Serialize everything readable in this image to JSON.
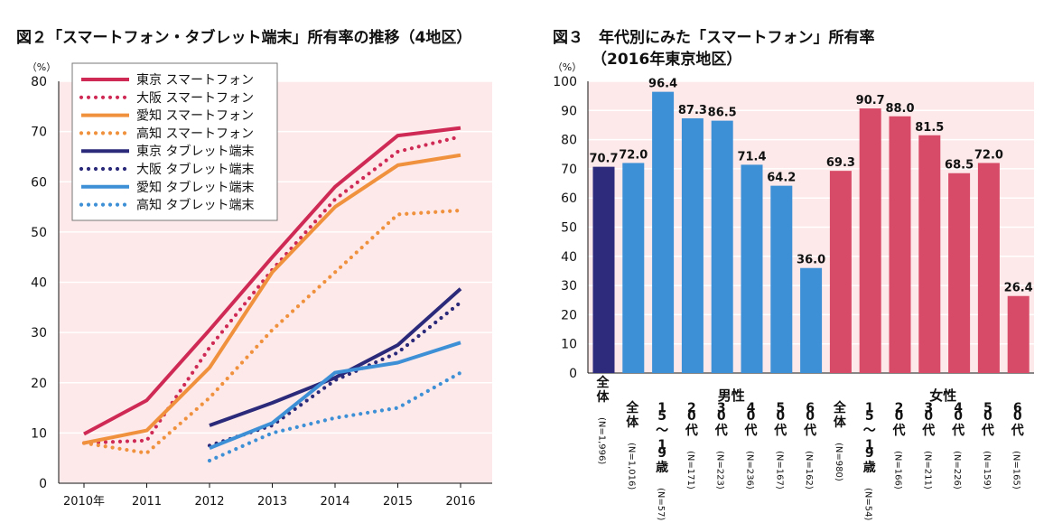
{
  "chart_data": [
    {
      "type": "line",
      "title": "図２「スマートフォン・タブレット端末」所有率の推移（4地区）",
      "ylabel": "（%）",
      "ylim": [
        0,
        80
      ],
      "yticks": [
        "0",
        "10",
        "20",
        "30",
        "40",
        "50",
        "60",
        "70",
        "80"
      ],
      "x": [
        "2010年",
        "2011",
        "2012",
        "2013",
        "2014",
        "2015",
        "2016"
      ],
      "grid": true,
      "legend_position": "top-left",
      "series": [
        {
          "name": "東京 スマートフォン",
          "style": "solid",
          "color": "#cf2a55",
          "values": [
            9.8,
            16.5,
            30.5,
            45.0,
            59.0,
            69.2,
            70.7
          ]
        },
        {
          "name": "大阪 スマートフォン",
          "style": "dotted",
          "color": "#cf2a55",
          "values": [
            8.0,
            8.5,
            27.0,
            42.5,
            56.5,
            66.0,
            69.0
          ]
        },
        {
          "name": "愛知 スマートフォン",
          "style": "solid",
          "color": "#f0913e",
          "values": [
            8.0,
            10.5,
            23.0,
            42.0,
            55.0,
            63.3,
            65.3
          ]
        },
        {
          "name": "高知 スマートフォン",
          "style": "dotted",
          "color": "#f0913e",
          "values": [
            8.0,
            6.0,
            17.0,
            30.5,
            42.0,
            53.5,
            54.3
          ]
        },
        {
          "name": "東京 タブレット端末",
          "style": "solid",
          "color": "#2b2a7a",
          "values": [
            null,
            null,
            11.5,
            16.0,
            21.0,
            27.5,
            38.7
          ]
        },
        {
          "name": "大阪 タブレット端末",
          "style": "dotted",
          "color": "#2b2a7a",
          "values": [
            null,
            null,
            7.5,
            11.5,
            20.5,
            26.0,
            36.0
          ]
        },
        {
          "name": "愛知 タブレット端末",
          "style": "solid",
          "color": "#3d8fd6",
          "values": [
            null,
            null,
            7.0,
            12.0,
            22.0,
            24.0,
            28.0
          ]
        },
        {
          "name": "高知 タブレット端末",
          "style": "dotted",
          "color": "#3d8fd6",
          "values": [
            null,
            null,
            4.5,
            10.0,
            13.0,
            15.0,
            22.0
          ]
        }
      ]
    },
    {
      "type": "bar",
      "title": "図３　年代別にみた「スマートフォン」所有率",
      "subtitle": "（2016年東京地区）",
      "ylabel": "（%）",
      "ylim": [
        0,
        100
      ],
      "yticks": [
        "0",
        "10",
        "20",
        "30",
        "40",
        "50",
        "60",
        "70",
        "80",
        "90",
        "100"
      ],
      "groups": [
        {
          "label": "男性",
          "categories": [
            "全体",
            "15〜19歳",
            "20代",
            "30代",
            "40代",
            "50代",
            "60代"
          ]
        },
        {
          "label": "女性",
          "categories": [
            "全体",
            "15〜19歳",
            "20代",
            "30代",
            "40代",
            "50代",
            "60代"
          ]
        }
      ],
      "bars": [
        {
          "label": "全体",
          "n": "(N=1,996)",
          "value": 70.7,
          "value_label": "70.7",
          "color": "#2e2a7c"
        },
        {
          "label": "全体",
          "n": "(N=1,016)",
          "value": 72.0,
          "value_label": "72.0",
          "color": "#3d8fd6"
        },
        {
          "label": "15〜19歳",
          "n": "(N=57)",
          "value": 96.4,
          "value_label": "96.4",
          "color": "#3d8fd6"
        },
        {
          "label": "20代",
          "n": "(N=171)",
          "value": 87.3,
          "value_label": "87.3",
          "color": "#3d8fd6"
        },
        {
          "label": "30代",
          "n": "(N=223)",
          "value": 86.5,
          "value_label": "86.5",
          "color": "#3d8fd6"
        },
        {
          "label": "40代",
          "n": "(N=236)",
          "value": 71.4,
          "value_label": "71.4",
          "color": "#3d8fd6"
        },
        {
          "label": "50代",
          "n": "(N=167)",
          "value": 64.2,
          "value_label": "64.2",
          "color": "#3d8fd6"
        },
        {
          "label": "60代",
          "n": "(N=162)",
          "value": 36.0,
          "value_label": "36.0",
          "color": "#3d8fd6"
        },
        {
          "label": "全体",
          "n": "(N=980)",
          "value": 69.3,
          "value_label": "69.3",
          "color": "#d84b68"
        },
        {
          "label": "15〜19歳",
          "n": "(N=54)",
          "value": 90.7,
          "value_label": "90.7",
          "color": "#d84b68"
        },
        {
          "label": "20代",
          "n": "(N=166)",
          "value": 88.0,
          "value_label": "88.0",
          "color": "#d84b68"
        },
        {
          "label": "30代",
          "n": "(N=211)",
          "value": 81.5,
          "value_label": "81.5",
          "color": "#d84b68"
        },
        {
          "label": "40代",
          "n": "(N=226)",
          "value": 68.5,
          "value_label": "68.5",
          "color": "#d84b68"
        },
        {
          "label": "50代",
          "n": "(N=159)",
          "value": 72.0,
          "value_label": "72.0",
          "color": "#d84b68"
        },
        {
          "label": "60代",
          "n": "(N=165)",
          "value": 26.4,
          "value_label": "26.4",
          "color": "#d84b68"
        }
      ]
    }
  ]
}
